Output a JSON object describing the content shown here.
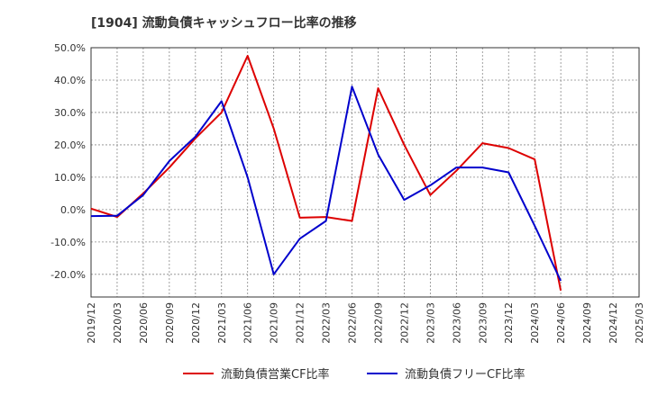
{
  "chart_data": {
    "type": "line",
    "title": "[1904]  流動負債キャッシュフロー比率の推移",
    "xlabel": "",
    "ylabel": "",
    "ylim": [
      -27,
      50
    ],
    "y_ticks": [
      50,
      40,
      30,
      20,
      10,
      0,
      -10,
      -20
    ],
    "y_tick_labels": [
      "50.0%",
      "40.0%",
      "30.0%",
      "20.0%",
      "10.0%",
      "0.0%",
      "-10.0%",
      "-20.0%"
    ],
    "x_tick_labels": [
      "2019/12",
      "2020/03",
      "2020/06",
      "2020/09",
      "2020/12",
      "2021/03",
      "2021/06",
      "2021/09",
      "2021/12",
      "2022/03",
      "2022/06",
      "2022/09",
      "2022/12",
      "2023/03",
      "2023/06",
      "2023/09",
      "2023/12",
      "2024/03",
      "2024/06",
      "2024/09",
      "2024/12",
      "2025/03"
    ],
    "grid": true,
    "legend_position": "bottom-center",
    "series": [
      {
        "name": "流動負債営業CF比率",
        "color": "#dd0000",
        "points": [
          {
            "x": "2019/12",
            "y": 0.3
          },
          {
            "x": "2020/03",
            "y": -2.3
          },
          {
            "x": "2020/06",
            "y": 5.0
          },
          {
            "x": "2020/09",
            "y": 13.0
          },
          {
            "x": "2020/12",
            "y": 22.0
          },
          {
            "x": "2021/03",
            "y": 30.0
          },
          {
            "x": "2021/06",
            "y": 47.5
          },
          {
            "x": "2021/09",
            "y": 25.0
          },
          {
            "x": "2021/12",
            "y": -2.5
          },
          {
            "x": "2022/03",
            "y": -2.3
          },
          {
            "x": "2022/06",
            "y": -3.5
          },
          {
            "x": "2022/09",
            "y": 37.5
          },
          {
            "x": "2022/12",
            "y": 20.0
          },
          {
            "x": "2023/03",
            "y": 4.5
          },
          {
            "x": "2023/06",
            "y": 12.0
          },
          {
            "x": "2023/09",
            "y": 20.5
          },
          {
            "x": "2023/12",
            "y": 19.0
          },
          {
            "x": "2024/03",
            "y": 15.5
          },
          {
            "x": "2024/06",
            "y": -25.0
          }
        ]
      },
      {
        "name": "流動負債フリーCF比率",
        "color": "#0000cc",
        "points": [
          {
            "x": "2019/12",
            "y": -2.0
          },
          {
            "x": "2020/03",
            "y": -1.9
          },
          {
            "x": "2020/06",
            "y": 4.5
          },
          {
            "x": "2020/09",
            "y": 15.0
          },
          {
            "x": "2020/12",
            "y": 22.5
          },
          {
            "x": "2021/03",
            "y": 33.5
          },
          {
            "x": "2021/06",
            "y": 10.0
          },
          {
            "x": "2021/09",
            "y": -20.0
          },
          {
            "x": "2021/12",
            "y": -9.0
          },
          {
            "x": "2022/03",
            "y": -3.5
          },
          {
            "x": "2022/06",
            "y": 38.0
          },
          {
            "x": "2022/09",
            "y": 17.0
          },
          {
            "x": "2022/12",
            "y": 3.0
          },
          {
            "x": "2023/03",
            "y": 7.5
          },
          {
            "x": "2023/06",
            "y": 13.0
          },
          {
            "x": "2023/09",
            "y": 13.0
          },
          {
            "x": "2023/12",
            "y": 11.5
          },
          {
            "x": "2024/03",
            "y": -5.0
          },
          {
            "x": "2024/06",
            "y": -22.0
          }
        ]
      }
    ]
  }
}
